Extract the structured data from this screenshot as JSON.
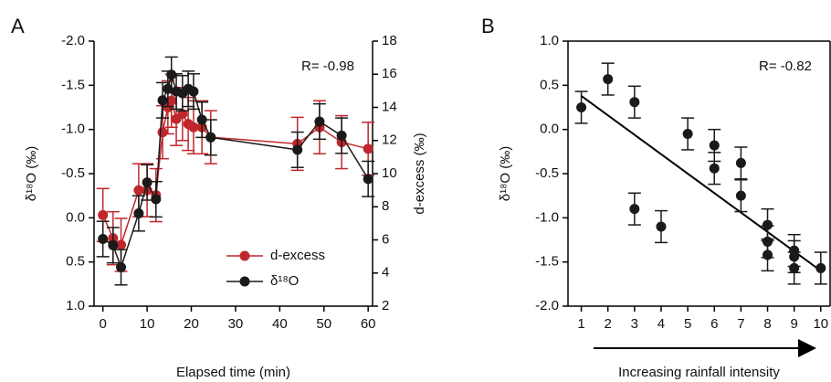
{
  "chart_data": [
    {
      "type": "line",
      "label": "A",
      "xlabel": "Elapsed time (min)",
      "ylabel": "δ¹⁸O (‰)",
      "y2label": "d-excess (‰)",
      "annotation": "R= -0.98",
      "x": [
        0,
        2.3,
        4.1,
        8.1,
        10,
        12,
        13.5,
        14.7,
        15.5,
        16.6,
        18,
        19.3,
        20.5,
        22.4,
        24.4,
        44,
        49,
        54,
        60
      ],
      "xlim": [
        -2,
        61
      ],
      "xticks": [
        0,
        10,
        20,
        30,
        40,
        50,
        60
      ],
      "ylim": [
        -2,
        1
      ],
      "y_inverted": true,
      "yticks": [
        {
          "value": -2,
          "label": "-2.0"
        },
        {
          "value": -1.5,
          "label": "-1.5"
        },
        {
          "value": -1,
          "label": "-1.0"
        },
        {
          "value": -0.5,
          "label": "-0.5"
        },
        {
          "value": 0,
          "label": "0.0"
        },
        {
          "value": 0.5,
          "label": "0.5"
        },
        {
          "value": 1,
          "label": "1.0"
        }
      ],
      "y2lim": [
        2,
        18
      ],
      "y2ticks": [
        2,
        4,
        6,
        8,
        10,
        12,
        14,
        16,
        18
      ],
      "legend": "lower right",
      "series": [
        {
          "name": "d-excess",
          "color": "#c0272d",
          "axis": "y2",
          "values": [
            7.5,
            6.1,
            5.7,
            9.0,
            9.0,
            8.7,
            12.5,
            14.0,
            14.4,
            13.3,
            13.6,
            13.0,
            12.8,
            12.8,
            12.2,
            11.8,
            12.8,
            11.9,
            11.5
          ],
          "errors": [
            1.6,
            1.6,
            1.6,
            1.6,
            1.6,
            1.6,
            1.6,
            1.6,
            1.6,
            1.6,
            1.6,
            1.6,
            1.6,
            1.6,
            1.6,
            1.6,
            1.6,
            1.6,
            1.6
          ]
        },
        {
          "name": "δ¹⁸O",
          "color": "#1a1a1a",
          "values": [
            0.24,
            0.31,
            0.56,
            -0.05,
            -0.4,
            -0.21,
            -1.33,
            -1.46,
            -1.62,
            -1.43,
            -1.41,
            -1.46,
            -1.43,
            -1.11,
            -0.91,
            -0.77,
            -1.09,
            -0.93,
            -0.44
          ],
          "errors": [
            0.2,
            0.2,
            0.2,
            0.2,
            0.2,
            0.2,
            0.2,
            0.2,
            0.2,
            0.2,
            0.2,
            0.2,
            0.2,
            0.2,
            0.2,
            0.2,
            0.2,
            0.2,
            0.2
          ]
        }
      ]
    },
    {
      "type": "scatter",
      "label": "B",
      "xlabel": "Increasing rainfall intensity",
      "ylabel": "δ¹⁸O (‰)",
      "annotation": "R= -0.82",
      "x": [
        1,
        2,
        3,
        3,
        4,
        5,
        6,
        6,
        7,
        7,
        8,
        8,
        8,
        9,
        9,
        9,
        10
      ],
      "xlim": [
        0.5,
        10.35
      ],
      "xticks": [
        1,
        2,
        3,
        4,
        5,
        6,
        7,
        8,
        9,
        10
      ],
      "ylim": [
        -2,
        1
      ],
      "yticks": [
        {
          "value": -2,
          "label": "-2.0"
        },
        {
          "value": -1.5,
          "label": "-1.5"
        },
        {
          "value": -1,
          "label": "-1.0"
        },
        {
          "value": -0.5,
          "label": "-0.5"
        },
        {
          "value": 0,
          "label": "0.0"
        },
        {
          "value": 0.5,
          "label": "0.5"
        },
        {
          "value": 1,
          "label": "1.0"
        }
      ],
      "series": [
        {
          "color": "#1a1a1a",
          "values": [
            0.25,
            0.57,
            0.31,
            -0.9,
            -1.1,
            -0.05,
            -0.18,
            -0.44,
            -0.38,
            -0.75,
            -1.08,
            -1.27,
            -1.42,
            -1.37,
            -1.44,
            -1.57,
            -1.57
          ],
          "errors": [
            0.18,
            0.18,
            0.18,
            0.18,
            0.18,
            0.18,
            0.18,
            0.18,
            0.18,
            0.18,
            0.18,
            0.18,
            0.18,
            0.18,
            0.18,
            0.18,
            0.18
          ]
        }
      ],
      "fit": {
        "x": [
          1,
          10
        ],
        "y": [
          0.38,
          -1.6
        ]
      }
    }
  ]
}
